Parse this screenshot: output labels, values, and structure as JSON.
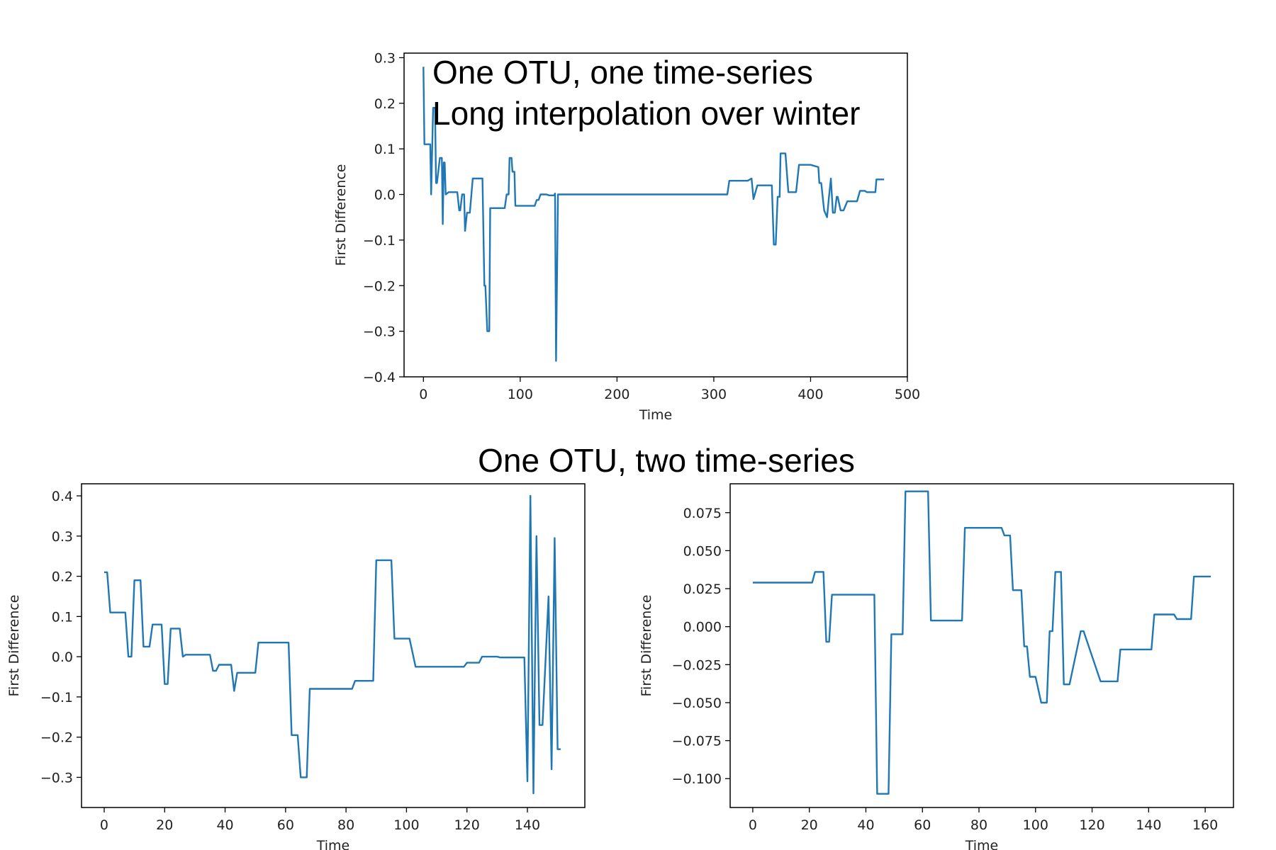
{
  "annotations": {
    "top_line1": "One OTU, one time-series",
    "top_line2": "Long interpolation over winter",
    "bottom_heading": "One OTU, two time-series"
  },
  "colors": {
    "series": "#1f77b4",
    "axes": "#000000"
  },
  "chart_data": [
    {
      "type": "line",
      "xlabel": "Time",
      "ylabel": "First Difference",
      "xlim": [
        -20,
        500
      ],
      "ylim": [
        -0.4,
        0.31
      ],
      "xticks": [
        0,
        100,
        200,
        300,
        400,
        500
      ],
      "xtick_labels": [
        "0",
        "100",
        "200",
        "300",
        "400",
        "500"
      ],
      "yticks": [
        0.3,
        0.2,
        0.1,
        0.0,
        -0.1,
        -0.2,
        -0.3,
        -0.4
      ],
      "ytick_labels": [
        "0.3",
        "0.2",
        "0.1",
        "0.0",
        "−0.1",
        "−0.2",
        "−0.3",
        "−0.4"
      ],
      "grid": false,
      "legend": "none",
      "series": [
        {
          "x": [
            0,
            1,
            2,
            3,
            7,
            8,
            10,
            11,
            12,
            13,
            14,
            17,
            19,
            20,
            21,
            22,
            23,
            26,
            28,
            35,
            37,
            38,
            40,
            42,
            43,
            45,
            48,
            51,
            61,
            63,
            64,
            66,
            68,
            69,
            70,
            84,
            86,
            88,
            89,
            91,
            92,
            94,
            95,
            98,
            100,
            101,
            102,
            115,
            117,
            119,
            121,
            123,
            127,
            130,
            135,
            136,
            137,
            139,
            140,
            141,
            250,
            314,
            316,
            335,
            339,
            341,
            345,
            347,
            360,
            362,
            364,
            366,
            368,
            369,
            371,
            374,
            377,
            379,
            385,
            388,
            390,
            400,
            408,
            409,
            411,
            413,
            414,
            417,
            419,
            421,
            423,
            425,
            427,
            428,
            431,
            433,
            434,
            438,
            441,
            443,
            448,
            451,
            456,
            458,
            467,
            468,
            474,
            476
          ],
          "y": [
            0.28,
            0.11,
            0.11,
            0.11,
            0.11,
            0.0,
            0.19,
            0.19,
            0.19,
            0.025,
            0.025,
            0.08,
            0.08,
            -0.065,
            0.07,
            0.07,
            0.0,
            0.005,
            0.005,
            0.005,
            -0.035,
            -0.035,
            0.0,
            0.0,
            -0.08,
            -0.04,
            -0.04,
            0.035,
            0.035,
            -0.2,
            -0.2,
            -0.3,
            -0.3,
            -0.03,
            -0.03,
            -0.03,
            0.0,
            0.0,
            0.08,
            0.08,
            0.05,
            0.05,
            -0.025,
            -0.025,
            -0.025,
            -0.025,
            -0.025,
            -0.025,
            -0.012,
            -0.012,
            0.0,
            0.0,
            0.0,
            -0.002,
            -0.002,
            0.002,
            -0.365,
            0.0,
            0.0,
            0.0,
            0.0,
            0.0,
            0.03,
            0.03,
            0.035,
            -0.01,
            0.02,
            0.02,
            0.02,
            -0.11,
            -0.11,
            -0.005,
            -0.005,
            0.09,
            0.09,
            0.09,
            0.005,
            0.005,
            0.005,
            0.065,
            0.065,
            0.065,
            0.06,
            0.025,
            0.025,
            -0.015,
            -0.035,
            -0.05,
            -0.005,
            0.035,
            -0.04,
            -0.04,
            -0.005,
            -0.005,
            -0.035,
            -0.035,
            -0.035,
            -0.015,
            -0.015,
            -0.015,
            -0.015,
            0.008,
            0.008,
            0.005,
            0.005,
            0.033,
            0.033,
            0.033
          ]
        }
      ]
    },
    {
      "type": "line",
      "xlabel": "Time",
      "ylabel": "First Difference",
      "xlim": [
        -7.5,
        159
      ],
      "ylim": [
        -0.375,
        0.43
      ],
      "xticks": [
        0,
        20,
        40,
        60,
        80,
        100,
        120,
        140
      ],
      "xtick_labels": [
        "0",
        "20",
        "40",
        "60",
        "80",
        "100",
        "120",
        "140"
      ],
      "yticks": [
        0.4,
        0.3,
        0.2,
        0.1,
        0.0,
        -0.1,
        -0.2,
        -0.3
      ],
      "ytick_labels": [
        "0.4",
        "0.3",
        "0.2",
        "0.1",
        "0.0",
        "−0.1",
        "−0.2",
        "−0.3"
      ],
      "grid": false,
      "legend": "none",
      "series": [
        {
          "x": [
            0,
            1,
            2,
            7,
            8,
            9,
            10,
            12,
            13,
            15,
            16,
            17,
            19,
            20,
            21,
            22,
            25,
            26,
            27,
            35,
            36,
            37,
            38,
            42,
            43,
            44,
            50,
            51,
            61,
            62,
            64,
            65,
            67,
            68,
            69,
            82,
            83,
            89,
            90,
            95,
            96,
            100,
            101,
            103,
            104,
            119,
            120,
            124,
            125,
            130,
            131,
            139,
            140,
            141,
            142,
            143,
            144,
            145,
            147,
            148,
            149,
            150,
            151
          ],
          "y": [
            0.21,
            0.21,
            0.11,
            0.11,
            0.0,
            0.0,
            0.19,
            0.19,
            0.025,
            0.025,
            0.08,
            0.08,
            0.08,
            -0.068,
            -0.068,
            0.07,
            0.07,
            0.0,
            0.005,
            0.005,
            -0.035,
            -0.035,
            -0.02,
            -0.02,
            -0.085,
            -0.04,
            -0.04,
            0.035,
            0.035,
            -0.195,
            -0.195,
            -0.3,
            -0.3,
            -0.08,
            -0.08,
            -0.08,
            -0.06,
            -0.06,
            0.24,
            0.24,
            0.045,
            0.045,
            0.045,
            -0.025,
            -0.025,
            -0.025,
            -0.015,
            -0.015,
            0.0,
            0.0,
            -0.002,
            -0.002,
            -0.31,
            0.4,
            -0.34,
            0.3,
            -0.17,
            -0.17,
            0.15,
            -0.28,
            0.295,
            -0.23,
            -0.23
          ]
        }
      ]
    },
    {
      "type": "line",
      "xlabel": "Time",
      "ylabel": "First Difference",
      "xlim": [
        -8,
        170
      ],
      "ylim": [
        -0.119,
        0.094
      ],
      "xticks": [
        0,
        20,
        40,
        60,
        80,
        100,
        120,
        140,
        160
      ],
      "xtick_labels": [
        "0",
        "20",
        "40",
        "60",
        "80",
        "100",
        "120",
        "140",
        "160"
      ],
      "yticks": [
        0.075,
        0.05,
        0.025,
        0.0,
        -0.025,
        -0.05,
        -0.075,
        -0.1
      ],
      "ytick_labels": [
        "0.075",
        "0.050",
        "0.025",
        "0.000",
        "−0.025",
        "−0.050",
        "−0.075",
        "−0.100"
      ],
      "grid": false,
      "legend": "none",
      "series": [
        {
          "x": [
            0,
            21,
            22,
            25,
            26,
            27,
            28,
            29,
            43,
            44,
            48,
            49,
            53,
            54,
            62,
            63,
            74,
            75,
            88,
            89,
            91,
            92,
            95,
            96,
            97,
            98,
            100,
            102,
            104,
            105,
            106,
            107,
            109,
            110,
            111,
            112,
            116,
            117,
            123,
            124,
            129,
            130,
            141,
            142,
            149,
            150,
            155,
            156,
            162
          ],
          "y": [
            0.029,
            0.029,
            0.036,
            0.036,
            -0.01,
            -0.01,
            0.021,
            0.021,
            0.021,
            -0.11,
            -0.11,
            -0.005,
            -0.005,
            0.089,
            0.089,
            0.004,
            0.004,
            0.065,
            0.065,
            0.06,
            0.06,
            0.024,
            0.024,
            -0.013,
            -0.013,
            -0.033,
            -0.033,
            -0.05,
            -0.05,
            -0.003,
            -0.003,
            0.036,
            0.036,
            -0.038,
            -0.038,
            -0.038,
            -0.003,
            -0.003,
            -0.036,
            -0.036,
            -0.036,
            -0.015,
            -0.015,
            0.008,
            0.008,
            0.005,
            0.005,
            0.033,
            0.033
          ]
        }
      ]
    }
  ]
}
